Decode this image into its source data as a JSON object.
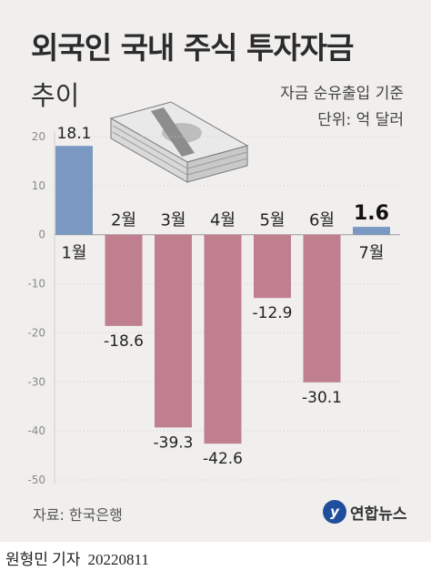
{
  "chart_data": {
    "type": "bar",
    "title": "외국인 국내 주식 투자자금",
    "subtitle": "추이",
    "notes": [
      "자금 순유출입 기준",
      "단위: 억 달러"
    ],
    "categories": [
      "1월",
      "2월",
      "3월",
      "4월",
      "5월",
      "6월",
      "7월"
    ],
    "values": [
      18.1,
      -18.6,
      -39.3,
      -42.6,
      -12.9,
      -30.1,
      1.6
    ],
    "value_labels": [
      "18.1",
      "-18.6",
      "-39.3",
      "-42.6",
      "-12.9",
      "-30.1",
      "1.6"
    ],
    "ylim": [
      -50,
      20
    ],
    "yticks": [
      20,
      10,
      0,
      -10,
      -20,
      -30,
      -40,
      -50
    ],
    "colors": {
      "positive": "#7b98c3",
      "negative": "#c07f8f",
      "gridline": "#cfcfcf",
      "zero_line": "#9a9a9a"
    },
    "legend": "none",
    "grid": false
  },
  "source": "자료: 한국은행",
  "logo": {
    "icon": "yonhap-logo-icon",
    "mark": "y",
    "text": "연합뉴스"
  },
  "footer": {
    "reporter": "원형민 기자",
    "date": "20220811"
  }
}
